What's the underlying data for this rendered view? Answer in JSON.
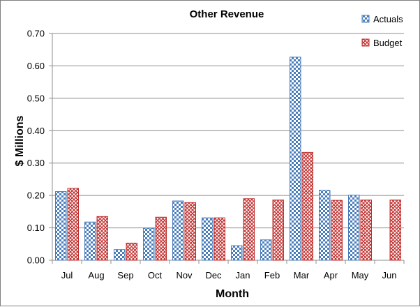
{
  "chart_data": {
    "type": "bar",
    "title": "Other Revenue",
    "xlabel": "Month",
    "ylabel": "$ Millions",
    "categories": [
      "Jul",
      "Aug",
      "Sep",
      "Oct",
      "Nov",
      "Dec",
      "Jan",
      "Feb",
      "Mar",
      "Apr",
      "May",
      "Jun"
    ],
    "series": [
      {
        "name": "Actuals",
        "values": [
          0.212,
          0.118,
          0.033,
          0.099,
          0.183,
          0.131,
          0.045,
          0.063,
          0.627,
          0.216,
          0.201,
          null
        ],
        "color": "#4a7ebb"
      },
      {
        "name": "Budget",
        "values": [
          0.222,
          0.135,
          0.053,
          0.133,
          0.178,
          0.131,
          0.19,
          0.186,
          0.333,
          0.185,
          0.186,
          0.186
        ],
        "color": "#c0302f"
      }
    ],
    "ylim": [
      0,
      0.7
    ],
    "yticks": [
      "0.00",
      "0.10",
      "0.20",
      "0.30",
      "0.40",
      "0.50",
      "0.60",
      "0.70"
    ],
    "grid": true,
    "legend": "top-right"
  }
}
